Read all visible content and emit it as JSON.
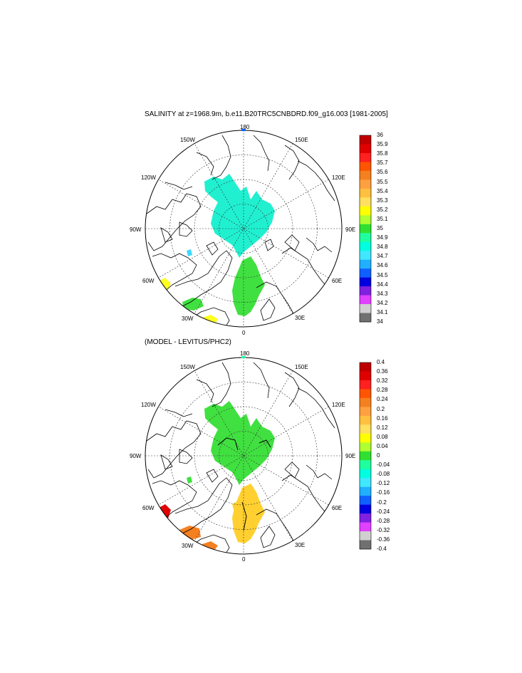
{
  "panels": [
    {
      "title": "SALINITY at z=1968.9m, b.e11.B20TRC5CNBDRD.f09_g16.003 [1981-2005]",
      "lon_labels": [
        "180",
        "150E",
        "120E",
        "90E",
        "60E",
        "30E",
        "0",
        "30W",
        "60W",
        "90W",
        "120W",
        "150W"
      ],
      "colorbar_labels": [
        "36",
        "35.9",
        "35.8",
        "35.7",
        "35.6",
        "35.5",
        "35.4",
        "35.3",
        "35.2",
        "35.1",
        "35",
        "34.9",
        "34.8",
        "34.7",
        "34.6",
        "34.5",
        "34.4",
        "34.3",
        "34.2",
        "34.1",
        "34"
      ]
    },
    {
      "title": "(MODEL - LEVITUS/PHC2)",
      "lon_labels": [
        "180",
        "150E",
        "120E",
        "90E",
        "60E",
        "30E",
        "0",
        "30W",
        "60W",
        "90W",
        "120W",
        "150W"
      ],
      "colorbar_labels": [
        "0.4",
        "0.36",
        "0.32",
        "0.28",
        "0.24",
        "0.2",
        "0.16",
        "0.12",
        "0.08",
        "0.04",
        "0",
        "-0.04",
        "-0.08",
        "-0.12",
        "-0.16",
        "-0.2",
        "-0.24",
        "-0.28",
        "-0.32",
        "-0.36",
        "-0.4"
      ]
    }
  ],
  "colorbar_colors": [
    "#c00000",
    "#e00000",
    "#ff2020",
    "#ff5500",
    "#f58020",
    "#ffa040",
    "#ffc040",
    "#ffe060",
    "#ffff00",
    "#b0ff30",
    "#30e030",
    "#20ffa0",
    "#00ffe0",
    "#40e8ff",
    "#20b0ff",
    "#1060ff",
    "#0000e0",
    "#8020e0",
    "#e040ff",
    "#d0d0d0",
    "#707070"
  ]
}
